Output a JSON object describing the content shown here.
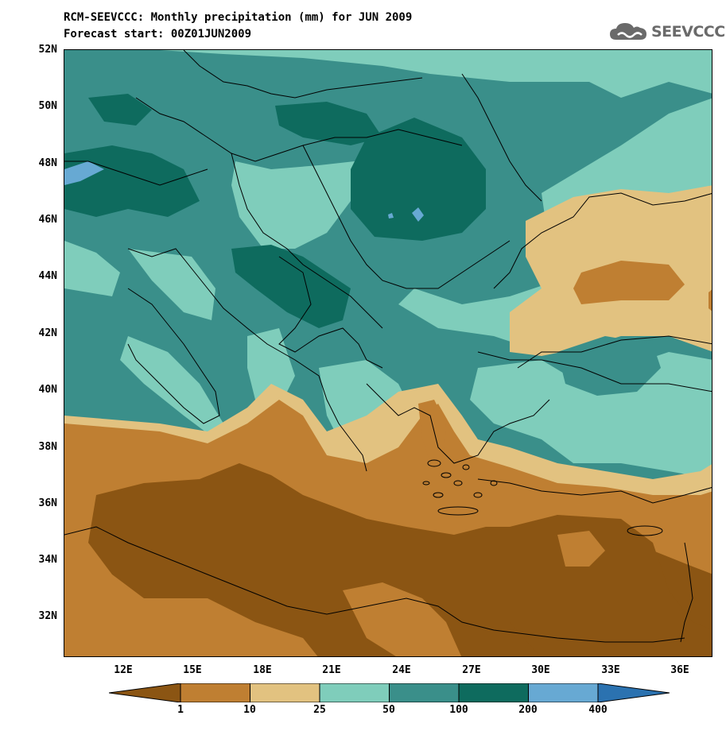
{
  "title_line1": "RCM-SEEVCCC: Monthly precipitation (mm) for JUN 2009",
  "title_line2": "Forecast start: 00Z01JUN2009",
  "logo_text": "SEEVCCC",
  "lat_labels": [
    "52N",
    "50N",
    "48N",
    "46N",
    "44N",
    "42N",
    "40N",
    "38N",
    "36N",
    "34N",
    "32N"
  ],
  "lon_labels": [
    "12E",
    "15E",
    "18E",
    "21E",
    "24E",
    "27E",
    "30E",
    "33E",
    "36E"
  ],
  "colorbar": {
    "labels": [
      "1",
      "10",
      "25",
      "50",
      "100",
      "200",
      "400"
    ],
    "colors": [
      "#8b5513",
      "#bf7f32",
      "#e2c280",
      "#7fcdbb",
      "#3a8f8a",
      "#0e6b5e",
      "#67a9d3",
      "#2b72b0"
    ]
  },
  "palette": {
    "dark_brown": "#8b5513",
    "brown": "#bf7f32",
    "tan": "#e2c280",
    "light_teal": "#7fcdbb",
    "teal": "#3a8f8a",
    "dark_teal": "#0e6b5e",
    "light_blue": "#67a9d3"
  }
}
